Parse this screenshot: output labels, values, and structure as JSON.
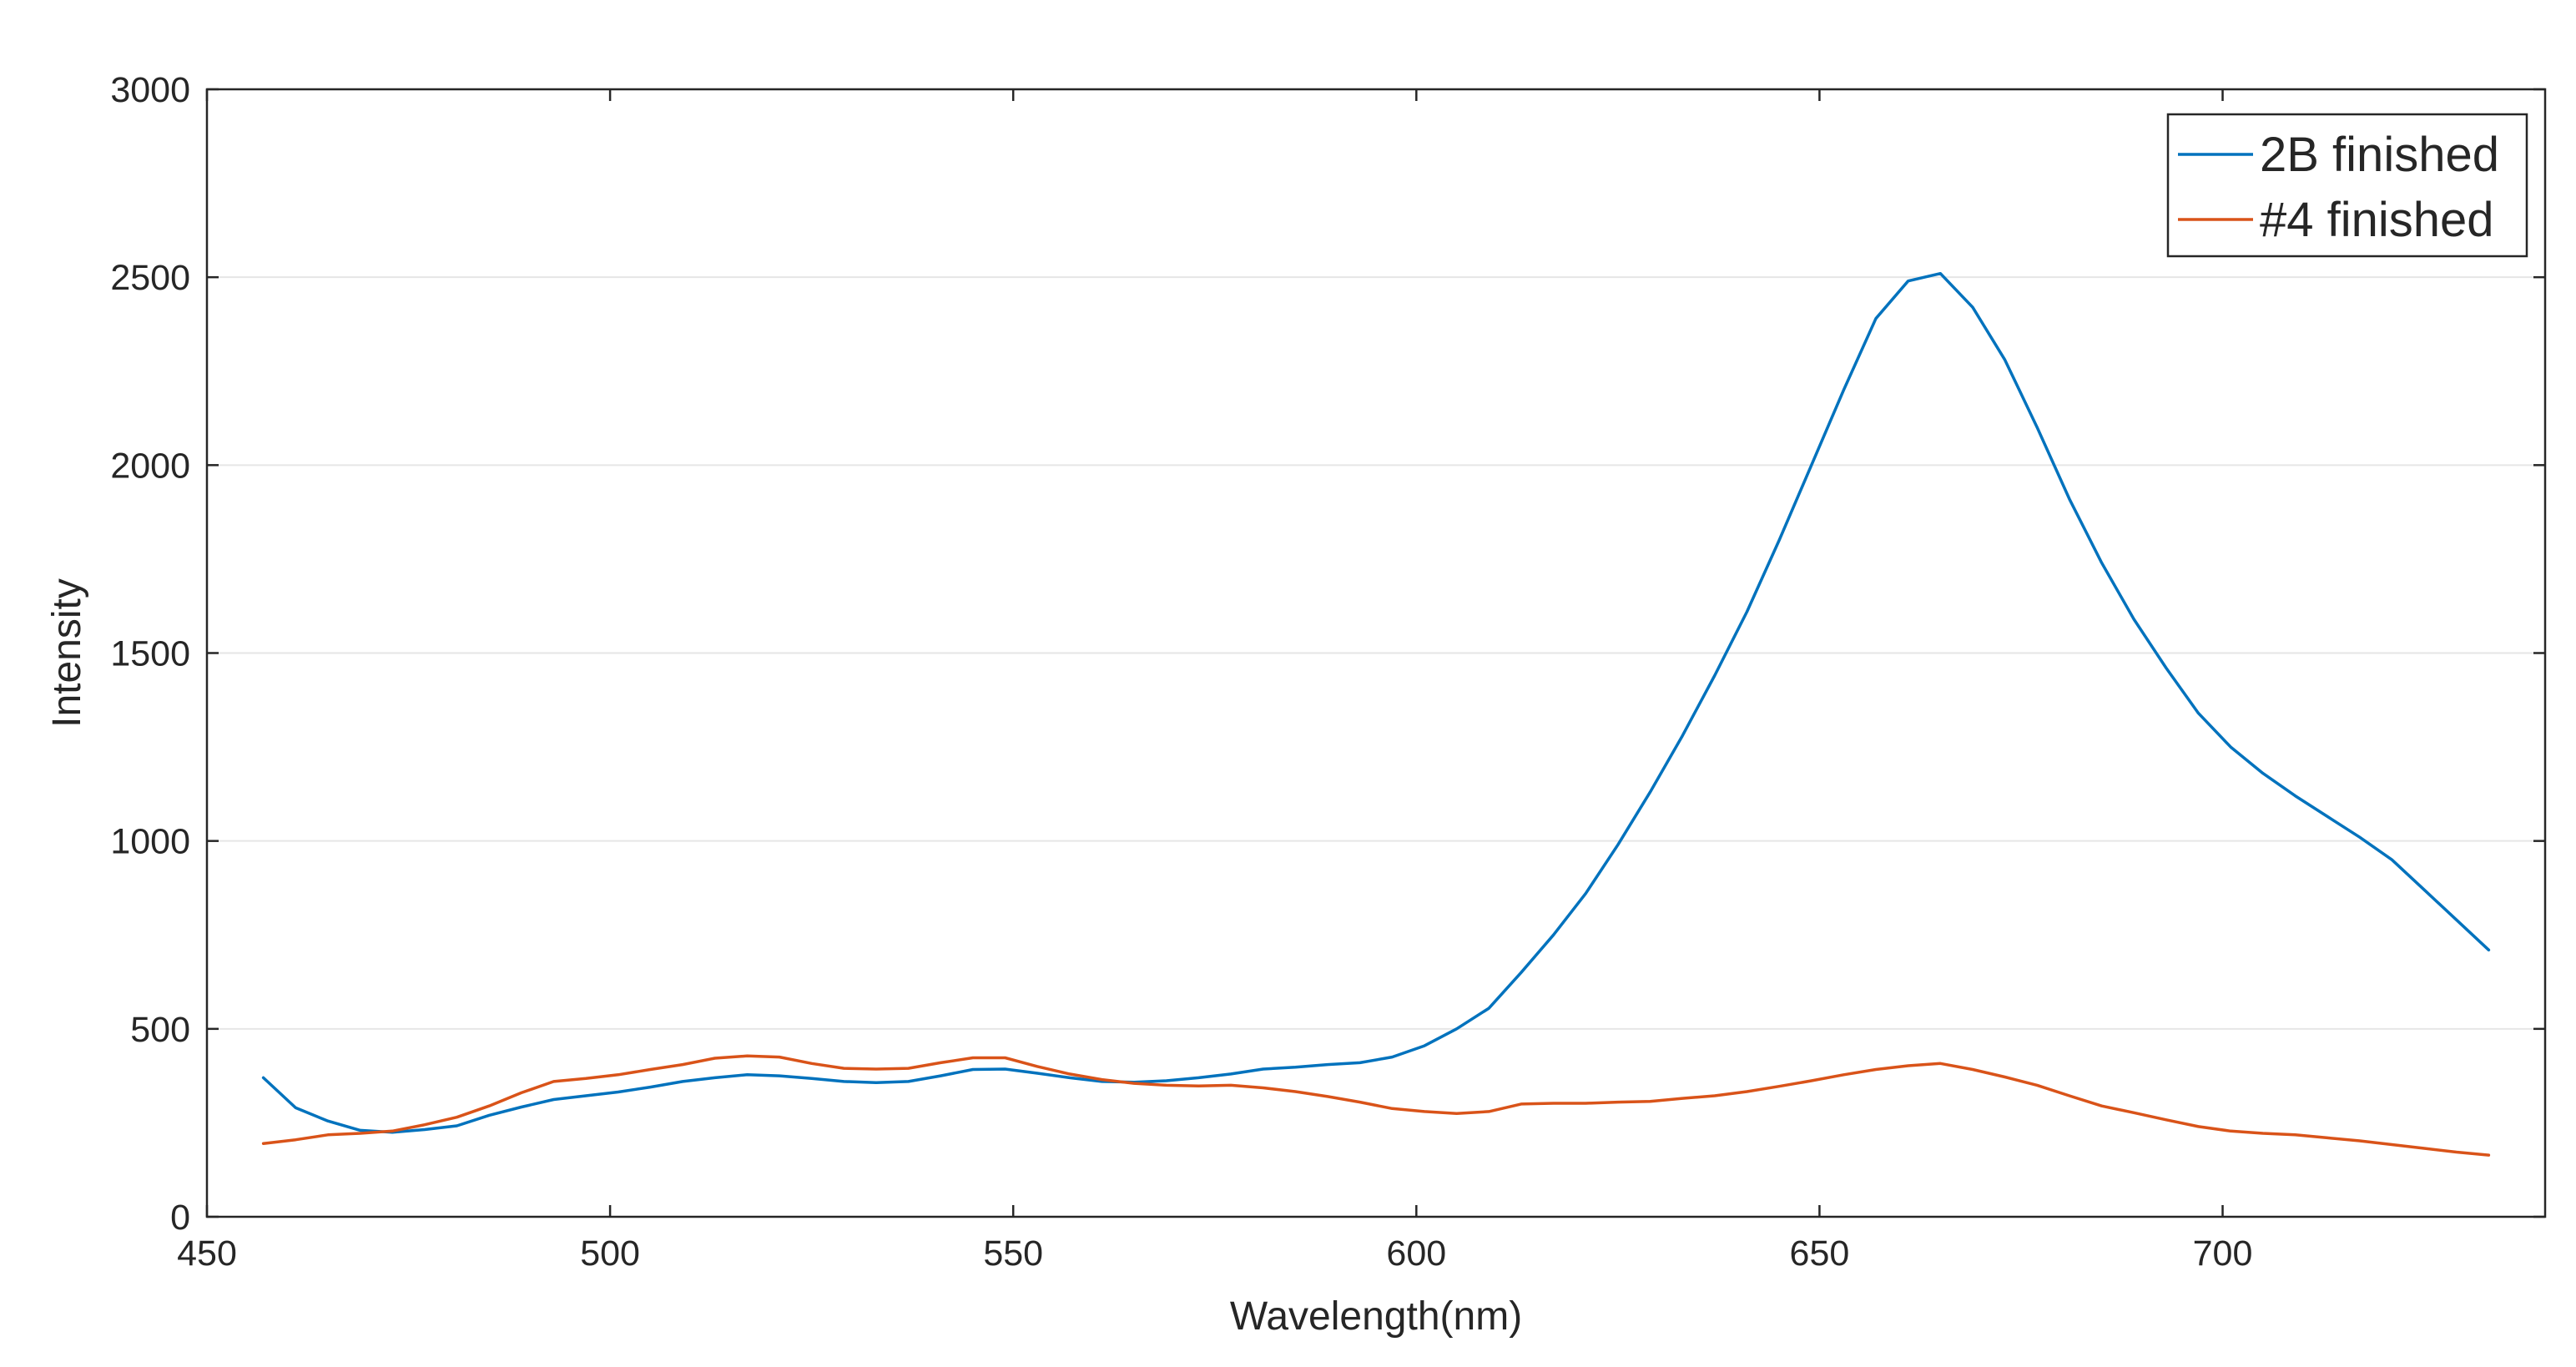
{
  "chart_data": {
    "type": "line",
    "title": "",
    "xlabel": "Wavelength(nm)",
    "ylabel": "Intensity",
    "xlim": [
      450,
      740
    ],
    "ylim": [
      0,
      3000
    ],
    "xticks": [
      450,
      500,
      550,
      600,
      650,
      700
    ],
    "yticks": [
      0,
      500,
      1000,
      1500,
      2000,
      2500,
      3000
    ],
    "grid": "horizontal",
    "legend_position": "top-right",
    "series": [
      {
        "name": "2B finished",
        "color": "#0072BD",
        "x": [
          457,
          461,
          465,
          469,
          473,
          477,
          481,
          485,
          489,
          493,
          497,
          501,
          505,
          509,
          513,
          517,
          521,
          525,
          529,
          533,
          537,
          541,
          545,
          549,
          553,
          557,
          561,
          565,
          569,
          573,
          577,
          581,
          585,
          589,
          593,
          597,
          601,
          605,
          609,
          613,
          617,
          621,
          625,
          629,
          633,
          637,
          641,
          645,
          649,
          653,
          657,
          661,
          665,
          669,
          673,
          677,
          681,
          685,
          689,
          693,
          697,
          701,
          705,
          709,
          713,
          717,
          721,
          725,
          729,
          733
        ],
        "y": [
          370,
          290,
          255,
          230,
          225,
          232,
          242,
          270,
          292,
          312,
          322,
          332,
          345,
          360,
          370,
          378,
          375,
          368,
          360,
          357,
          360,
          375,
          392,
          393,
          382,
          370,
          360,
          358,
          362,
          370,
          380,
          393,
          398,
          405,
          410,
          425,
          455,
          500,
          555,
          650,
          750,
          860,
          990,
          1130,
          1280,
          1440,
          1610,
          1800,
          2000,
          2200,
          2390,
          2490,
          2510,
          2420,
          2280,
          2100,
          1910,
          1740,
          1590,
          1460,
          1340,
          1250,
          1180,
          1120,
          1065,
          1010,
          950,
          870,
          790,
          710
        ]
      },
      {
        "name": "#4 finished",
        "color": "#D95319",
        "x": [
          457,
          461,
          465,
          469,
          473,
          477,
          481,
          485,
          489,
          493,
          497,
          501,
          505,
          509,
          513,
          517,
          521,
          525,
          529,
          533,
          537,
          541,
          545,
          549,
          553,
          557,
          561,
          565,
          569,
          573,
          577,
          581,
          585,
          589,
          593,
          597,
          601,
          605,
          609,
          613,
          617,
          621,
          625,
          629,
          633,
          637,
          641,
          645,
          649,
          653,
          657,
          661,
          665,
          669,
          673,
          677,
          681,
          685,
          689,
          693,
          697,
          701,
          705,
          709,
          713,
          717,
          721,
          725,
          729,
          733
        ],
        "y": [
          195,
          205,
          218,
          222,
          228,
          245,
          265,
          295,
          330,
          360,
          368,
          378,
          392,
          405,
          422,
          428,
          425,
          408,
          395,
          393,
          395,
          410,
          423,
          423,
          400,
          380,
          365,
          355,
          350,
          348,
          350,
          343,
          333,
          320,
          305,
          288,
          280,
          275,
          280,
          300,
          302,
          302,
          305,
          307,
          315,
          322,
          333,
          347,
          362,
          378,
          392,
          402,
          408,
          392,
          372,
          350,
          322,
          295,
          277,
          258,
          240,
          228,
          222,
          218,
          210,
          202,
          192,
          182,
          172,
          164
        ]
      }
    ]
  }
}
